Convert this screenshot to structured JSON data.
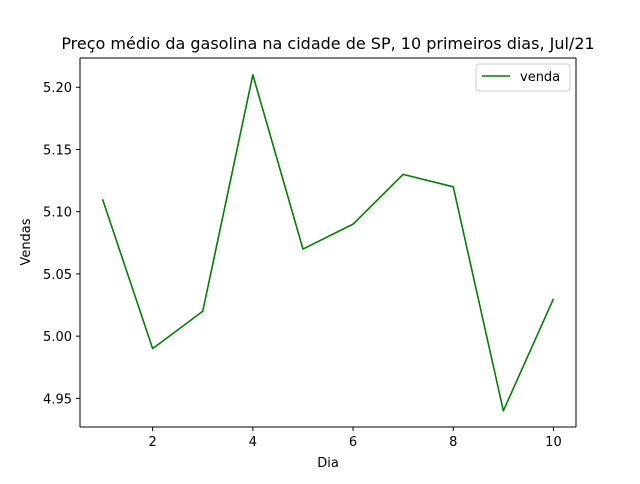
{
  "chart_data": {
    "type": "line",
    "title": "Preço médio da gasolina na cidade de SP, 10 primeiros dias, Jul/21",
    "xlabel": "Dia",
    "ylabel": "Vendas",
    "xlim": [
      0.55,
      10.45
    ],
    "ylim": [
      4.927,
      5.2235
    ],
    "xticks": [
      2,
      4,
      6,
      8,
      10
    ],
    "xtick_labels": [
      "2",
      "4",
      "6",
      "8",
      "10"
    ],
    "yticks": [
      4.95,
      5.0,
      5.05,
      5.1,
      5.15,
      5.2
    ],
    "ytick_labels": [
      "4.95",
      "5.00",
      "5.05",
      "5.10",
      "5.15",
      "5.20"
    ],
    "grid": false,
    "legend_position": "top-right",
    "series": [
      {
        "name": "venda",
        "color": "#008000",
        "x": [
          1,
          2,
          3,
          4,
          5,
          6,
          7,
          8,
          9,
          10
        ],
        "y": [
          5.11,
          4.99,
          5.02,
          5.21,
          5.07,
          5.09,
          5.13,
          5.12,
          4.94,
          5.03
        ]
      }
    ]
  }
}
